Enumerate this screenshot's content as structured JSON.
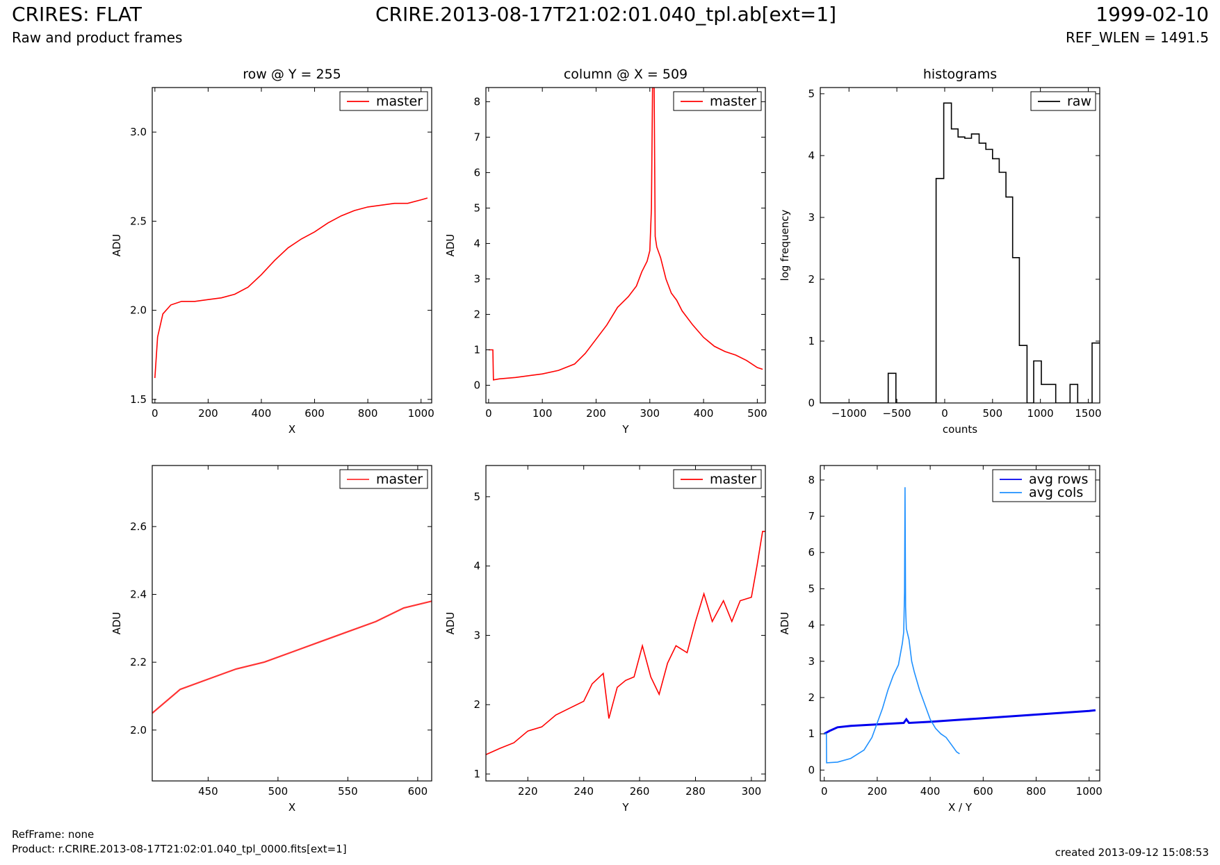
{
  "header": {
    "title": "CRIRES: FLAT",
    "subtitle": "Raw and product frames",
    "file": "CRIRE.2013-08-17T21:02:01.040_tpl.ab[ext=1]",
    "date": "1999-02-10",
    "ref_wlen": "REF_WLEN = 1491.5"
  },
  "footer": {
    "refframe": "RefFrame: none",
    "product": "Product: r.CRIRE.2013-08-17T21:02:01.040_tpl_0000.fits[ext=1]",
    "created": "created 2013-09-12 15:08:53"
  },
  "colors": {
    "master": "#ff0000",
    "master_zoom": "#ff3333",
    "raw": "#000000",
    "avg_rows": "#0000ee",
    "avg_cols": "#1e90ff"
  },
  "chart_data": [
    {
      "type": "line",
      "title": "row @ Y = 255",
      "xlabel": "X",
      "ylabel": "ADU",
      "xlim": [
        -10,
        1040
      ],
      "ylim": [
        1.48,
        3.25
      ],
      "xticks": [
        0,
        200,
        400,
        600,
        800,
        1000
      ],
      "yticks": [
        1.5,
        2.0,
        2.5,
        3.0
      ],
      "ytick_labels": [
        "1.5",
        "2.0",
        "2.5",
        "3.0"
      ],
      "legend": "top-right",
      "series": [
        {
          "name": "master",
          "color": "#ff0000",
          "points": [
            [
              0,
              1.62
            ],
            [
              10,
              1.85
            ],
            [
              30,
              1.98
            ],
            [
              60,
              2.03
            ],
            [
              100,
              2.05
            ],
            [
              150,
              2.05
            ],
            [
              200,
              2.06
            ],
            [
              250,
              2.07
            ],
            [
              300,
              2.09
            ],
            [
              350,
              2.13
            ],
            [
              400,
              2.2
            ],
            [
              450,
              2.28
            ],
            [
              500,
              2.35
            ],
            [
              550,
              2.4
            ],
            [
              600,
              2.44
            ],
            [
              650,
              2.49
            ],
            [
              700,
              2.53
            ],
            [
              750,
              2.56
            ],
            [
              800,
              2.58
            ],
            [
              850,
              2.59
            ],
            [
              900,
              2.6
            ],
            [
              950,
              2.6
            ],
            [
              1000,
              2.62
            ],
            [
              1024,
              2.63
            ]
          ]
        }
      ]
    },
    {
      "type": "line",
      "title": "column @ X = 509",
      "xlabel": "Y",
      "ylabel": "ADU",
      "xlim": [
        -5,
        515
      ],
      "ylim": [
        -0.5,
        8.4
      ],
      "xticks": [
        0,
        100,
        200,
        300,
        400,
        500
      ],
      "yticks": [
        0,
        1,
        2,
        3,
        4,
        5,
        6,
        7,
        8
      ],
      "legend": "top-right",
      "series": [
        {
          "name": "master",
          "color": "#ff0000",
          "points": [
            [
              0,
              1.0
            ],
            [
              8,
              1.0
            ],
            [
              9,
              0.15
            ],
            [
              20,
              0.18
            ],
            [
              50,
              0.22
            ],
            [
              80,
              0.28
            ],
            [
              100,
              0.32
            ],
            [
              130,
              0.42
            ],
            [
              160,
              0.6
            ],
            [
              180,
              0.9
            ],
            [
              200,
              1.3
            ],
            [
              220,
              1.7
            ],
            [
              240,
              2.2
            ],
            [
              260,
              2.5
            ],
            [
              275,
              2.8
            ],
            [
              285,
              3.2
            ],
            [
              295,
              3.5
            ],
            [
              300,
              3.8
            ],
            [
              303,
              5.0
            ],
            [
              305,
              8.4
            ],
            [
              308,
              8.4
            ],
            [
              310,
              4.2
            ],
            [
              313,
              3.9
            ],
            [
              320,
              3.6
            ],
            [
              330,
              3.0
            ],
            [
              340,
              2.6
            ],
            [
              350,
              2.4
            ],
            [
              360,
              2.1
            ],
            [
              380,
              1.7
            ],
            [
              400,
              1.35
            ],
            [
              420,
              1.1
            ],
            [
              440,
              0.95
            ],
            [
              460,
              0.85
            ],
            [
              480,
              0.7
            ],
            [
              500,
              0.5
            ],
            [
              510,
              0.45
            ]
          ]
        }
      ]
    },
    {
      "type": "line",
      "title": "histograms",
      "xlabel": "counts",
      "ylabel": "log frequency",
      "xlim": [
        -1300,
        1620
      ],
      "ylim": [
        0,
        5.1
      ],
      "xticks": [
        -1000,
        -500,
        0,
        500,
        1000,
        1500
      ],
      "yticks": [
        0,
        1,
        2,
        3,
        4,
        5
      ],
      "xtick_labels": [
        "−1000",
        "−500",
        "0",
        "500",
        "1000",
        "1500"
      ],
      "legend": "top-right",
      "series": [
        {
          "name": "raw",
          "color": "#000000",
          "steps": [
            [
              -1300,
              0
            ],
            [
              -590,
              0.48
            ],
            [
              -510,
              0
            ],
            [
              -90,
              3.63
            ],
            [
              -10,
              4.85
            ],
            [
              70,
              4.43
            ],
            [
              140,
              4.3
            ],
            [
              210,
              4.28
            ],
            [
              280,
              4.35
            ],
            [
              360,
              4.2
            ],
            [
              430,
              4.1
            ],
            [
              500,
              3.95
            ],
            [
              570,
              3.73
            ],
            [
              640,
              3.33
            ],
            [
              710,
              2.35
            ],
            [
              780,
              0.93
            ],
            [
              860,
              0
            ],
            [
              930,
              0.68
            ],
            [
              1010,
              0.3
            ],
            [
              1160,
              0
            ],
            [
              1310,
              0.3
            ],
            [
              1390,
              0
            ],
            [
              1540,
              0.97
            ],
            [
              1620,
              0.97
            ]
          ]
        }
      ]
    },
    {
      "type": "line",
      "xlabel": "X",
      "ylabel": "ADU",
      "xlim": [
        410,
        610
      ],
      "ylim": [
        1.85,
        2.78
      ],
      "xticks": [
        450,
        500,
        550,
        600
      ],
      "yticks": [
        2.0,
        2.2,
        2.4,
        2.6
      ],
      "ytick_labels": [
        "2.0",
        "2.2",
        "2.4",
        "2.6"
      ],
      "legend": "top-right",
      "series": [
        {
          "name": "master",
          "color": "#ff3333",
          "points": [
            [
              410,
              2.05
            ],
            [
              430,
              2.12
            ],
            [
              450,
              2.15
            ],
            [
              470,
              2.18
            ],
            [
              490,
              2.2
            ],
            [
              510,
              2.23
            ],
            [
              530,
              2.26
            ],
            [
              550,
              2.29
            ],
            [
              570,
              2.32
            ],
            [
              590,
              2.36
            ],
            [
              610,
              2.38
            ]
          ]
        }
      ]
    },
    {
      "type": "line",
      "xlabel": "Y",
      "ylabel": "ADU",
      "xlim": [
        205,
        305
      ],
      "ylim": [
        0.9,
        5.45
      ],
      "xticks": [
        220,
        240,
        260,
        280,
        300
      ],
      "yticks": [
        1,
        2,
        3,
        4,
        5
      ],
      "legend": "top-right",
      "series": [
        {
          "name": "master",
          "color": "#ff0000",
          "points": [
            [
              205,
              1.28
            ],
            [
              210,
              1.37
            ],
            [
              215,
              1.45
            ],
            [
              220,
              1.62
            ],
            [
              225,
              1.68
            ],
            [
              230,
              1.85
            ],
            [
              235,
              1.95
            ],
            [
              240,
              2.05
            ],
            [
              243,
              2.3
            ],
            [
              247,
              2.45
            ],
            [
              249,
              1.8
            ],
            [
              252,
              2.25
            ],
            [
              255,
              2.35
            ],
            [
              258,
              2.4
            ],
            [
              261,
              2.85
            ],
            [
              264,
              2.4
            ],
            [
              267,
              2.15
            ],
            [
              270,
              2.6
            ],
            [
              273,
              2.85
            ],
            [
              277,
              2.75
            ],
            [
              280,
              3.2
            ],
            [
              283,
              3.6
            ],
            [
              286,
              3.2
            ],
            [
              290,
              3.5
            ],
            [
              293,
              3.2
            ],
            [
              296,
              3.5
            ],
            [
              300,
              3.55
            ],
            [
              302,
              4.0
            ],
            [
              304,
              4.5
            ],
            [
              305,
              4.5
            ]
          ]
        }
      ]
    },
    {
      "type": "line",
      "xlabel": "X / Y",
      "ylabel": "ADU",
      "xlim": [
        -15,
        1040
      ],
      "ylim": [
        -0.3,
        8.4
      ],
      "xticks": [
        0,
        200,
        400,
        600,
        800,
        1000
      ],
      "yticks": [
        0,
        1,
        2,
        3,
        4,
        5,
        6,
        7,
        8
      ],
      "legend": "top-right",
      "series": [
        {
          "name": "avg rows",
          "color": "#0000ee",
          "points": [
            [
              0,
              1.0
            ],
            [
              20,
              1.08
            ],
            [
              50,
              1.18
            ],
            [
              100,
              1.22
            ],
            [
              200,
              1.26
            ],
            [
              300,
              1.3
            ],
            [
              310,
              1.4
            ],
            [
              320,
              1.3
            ],
            [
              400,
              1.33
            ],
            [
              500,
              1.38
            ],
            [
              600,
              1.43
            ],
            [
              700,
              1.48
            ],
            [
              800,
              1.53
            ],
            [
              900,
              1.58
            ],
            [
              1000,
              1.63
            ],
            [
              1024,
              1.65
            ]
          ]
        },
        {
          "name": "avg cols",
          "color": "#1e90ff",
          "points": [
            [
              0,
              1.0
            ],
            [
              8,
              1.0
            ],
            [
              9,
              0.2
            ],
            [
              50,
              0.22
            ],
            [
              100,
              0.32
            ],
            [
              150,
              0.55
            ],
            [
              180,
              0.9
            ],
            [
              200,
              1.3
            ],
            [
              220,
              1.7
            ],
            [
              240,
              2.2
            ],
            [
              260,
              2.6
            ],
            [
              280,
              2.9
            ],
            [
              295,
              3.5
            ],
            [
              300,
              3.8
            ],
            [
              303,
              4.9
            ],
            [
              305,
              7.8
            ],
            [
              307,
              4.5
            ],
            [
              310,
              3.9
            ],
            [
              320,
              3.6
            ],
            [
              330,
              3.0
            ],
            [
              340,
              2.7
            ],
            [
              360,
              2.2
            ],
            [
              380,
              1.8
            ],
            [
              400,
              1.4
            ],
            [
              420,
              1.15
            ],
            [
              440,
              1.0
            ],
            [
              460,
              0.9
            ],
            [
              480,
              0.7
            ],
            [
              500,
              0.5
            ],
            [
              511,
              0.45
            ]
          ]
        }
      ]
    }
  ]
}
